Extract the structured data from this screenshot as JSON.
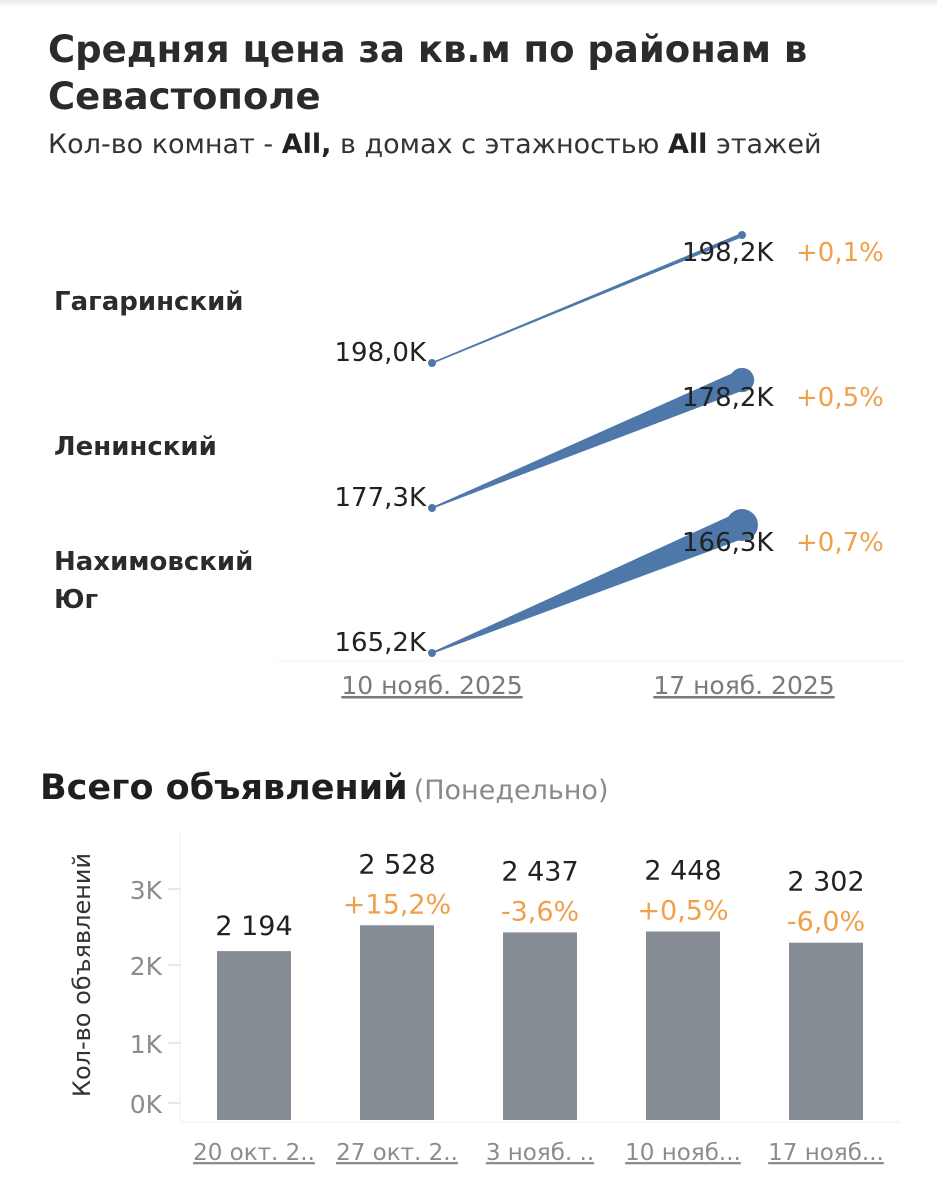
{
  "price_chart": {
    "title": "Средняя цена за кв.м по районам в Севастополе",
    "subtitle": {
      "p1": "Кол-во комнат - ",
      "rooms": "All,",
      "p2": " в домах с этажностью ",
      "floors": "All",
      "p3": " этажей"
    },
    "colors": {
      "line": "#4e78aa",
      "change": "#f0a04b",
      "label": "#222222",
      "axis": "#7a7a7a"
    }
  },
  "listings_chart": {
    "title": "Всего объявлений",
    "note": "(Понедельно)",
    "colors": {
      "bar": "#858c94",
      "change": "#f0a04b",
      "axis": "#8c8c8c"
    }
  },
  "chart_data": [
    {
      "type": "slope",
      "title": "Средняя цена за кв.м по районам в Севастополе",
      "x": [
        "10 нояб. 2025",
        "17 нояб. 2025"
      ],
      "series": [
        {
          "name": "Гагаринский",
          "values": [
            198.0,
            198.2
          ],
          "start_label": "198,0K",
          "end_label": "198,2K",
          "change": "+0,1%"
        },
        {
          "name": "Ленинский",
          "values": [
            177.3,
            178.2
          ],
          "start_label": "177,3K",
          "end_label": "178,2K",
          "change": "+0,5%"
        },
        {
          "name": "Нахимовский Юг",
          "values": [
            165.2,
            166.3
          ],
          "start_label": "165,2K",
          "end_label": "166,3K",
          "change": "+0,7%"
        }
      ]
    },
    {
      "type": "bar",
      "title": "Всего объявлений",
      "ylabel": "Кол-во объявлений",
      "ylim": [
        0,
        3500
      ],
      "yticks": [
        0,
        1000,
        2000,
        3000
      ],
      "ytick_labels": [
        "0K",
        "1K",
        "2K",
        "3K"
      ],
      "categories": [
        "20 окт. 2..",
        "27 окт. 2..",
        "3 нояб. ..",
        "10 нояб...",
        "17 нояб..."
      ],
      "values": [
        2194,
        2528,
        2437,
        2448,
        2302
      ],
      "value_labels": [
        "2 194",
        "2 528",
        "2 437",
        "2 448",
        "2 302"
      ],
      "changes": [
        "",
        "+15,2%",
        "-3,6%",
        "+0,5%",
        "-6,0%"
      ]
    }
  ]
}
